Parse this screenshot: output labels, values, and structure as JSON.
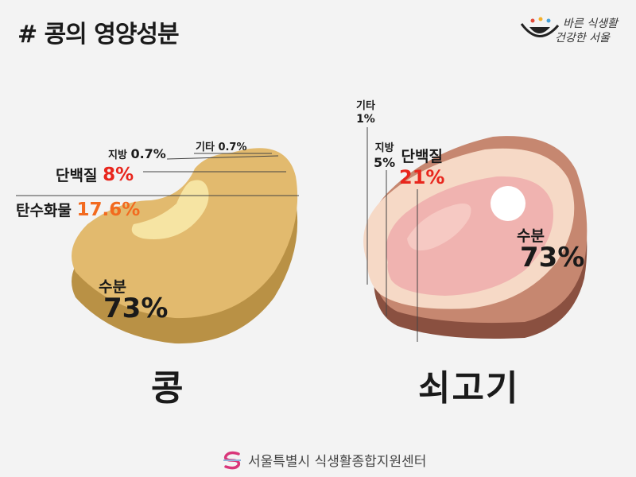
{
  "title": "# 콩의 영양성분",
  "logo": {
    "line1": "바른 식생활",
    "line2": "건강한 서울"
  },
  "bean": {
    "name": "콩",
    "etc": {
      "label": "기타",
      "value": "0.7%"
    },
    "fat": {
      "label": "지방",
      "value": "0.7%"
    },
    "protein": {
      "label": "단백질",
      "value": "8%"
    },
    "carb": {
      "label": "탄수화물",
      "value": "17.6%"
    },
    "water": {
      "label": "수분",
      "value": "73%"
    }
  },
  "beef": {
    "name": "쇠고기",
    "etc": {
      "label": "기타",
      "value": "1%"
    },
    "fat": {
      "label": "지방",
      "value": "5%"
    },
    "protein": {
      "label": "단백질",
      "value": "21%"
    },
    "water": {
      "label": "수분",
      "value": "73%"
    }
  },
  "footer": {
    "org": "서울특별시 식생활종합지원센터"
  },
  "colors": {
    "bean": "#e2ba6e",
    "bean_side": "#b99145",
    "bean_light": "#f6e4a3",
    "beef_outer": "#c68770",
    "beef_fat": "#f6d9c6",
    "beef_meat": "#f0b3b0",
    "accent_red": "#e8261d"
  }
}
